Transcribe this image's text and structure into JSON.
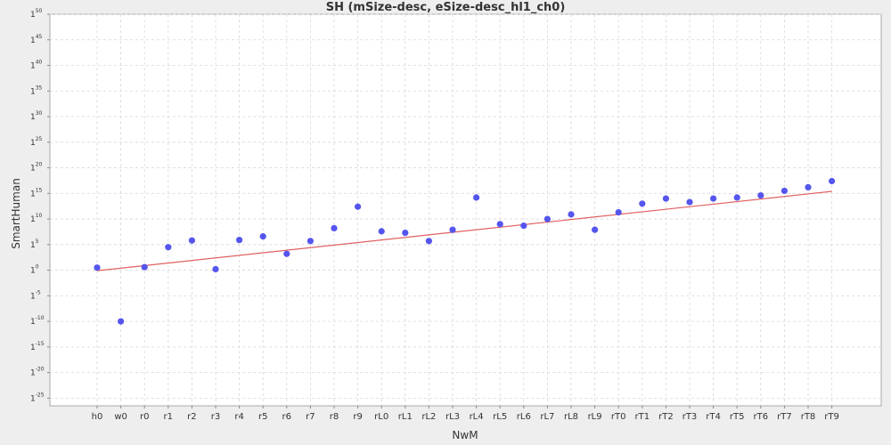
{
  "chart_data": {
    "type": "scatter",
    "title": "SH (mSize-desc, eSize-desc_hl1_ch0)",
    "xlabel": "NwM",
    "ylabel": "SmartHuman",
    "categories": [
      "h0",
      "w0",
      "r0",
      "r1",
      "r2",
      "r3",
      "r4",
      "r5",
      "r6",
      "r7",
      "r8",
      "r9",
      "rL0",
      "rL1",
      "rL2",
      "rL3",
      "rL4",
      "rL5",
      "rL6",
      "rL7",
      "rL8",
      "rL9",
      "rT0",
      "rT1",
      "rT2",
      "rT3",
      "rT4",
      "rT5",
      "rT6",
      "rT7",
      "rT8",
      "rT9"
    ],
    "y_scale": "power-of-1 exponent",
    "y_ticks": [
      {
        "base": "1",
        "exp": "-25",
        "value": -25
      },
      {
        "base": "1",
        "exp": "-20",
        "value": -20
      },
      {
        "base": "1",
        "exp": "-15",
        "value": -15
      },
      {
        "base": "1",
        "exp": "-10",
        "value": -10
      },
      {
        "base": "1",
        "exp": "-5",
        "value": -5
      },
      {
        "base": "1",
        "exp": "0",
        "value": 0
      },
      {
        "base": "1",
        "exp": "5",
        "value": 5
      },
      {
        "base": "1",
        "exp": "10",
        "value": 10
      },
      {
        "base": "1",
        "exp": "15",
        "value": 15
      },
      {
        "base": "1",
        "exp": "20",
        "value": 20
      },
      {
        "base": "1",
        "exp": "25",
        "value": 25
      },
      {
        "base": "1",
        "exp": "30",
        "value": 30
      },
      {
        "base": "1",
        "exp": "35",
        "value": 35
      },
      {
        "base": "1",
        "exp": "40",
        "value": 40
      },
      {
        "base": "1",
        "exp": "45",
        "value": 45
      },
      {
        "base": "1",
        "exp": "50",
        "value": 50
      }
    ],
    "ylim": [
      -26.5,
      50
    ],
    "series": [
      {
        "type": "scatter",
        "color": "#5555ee",
        "values": [
          0.5,
          -10.0,
          0.6,
          4.5,
          5.8,
          0.2,
          5.9,
          6.6,
          3.2,
          5.7,
          8.2,
          12.4,
          7.6,
          7.3,
          5.7,
          7.9,
          14.2,
          9.0,
          8.7,
          10.0,
          10.9,
          7.9,
          11.3,
          13.0,
          14.0,
          13.3,
          14.0,
          14.2,
          14.6,
          15.5,
          16.2,
          17.4
        ]
      },
      {
        "type": "line",
        "color": "#e06060",
        "start": [
          0,
          -0.1
        ],
        "end": [
          31,
          15.4
        ]
      }
    ],
    "grid": true,
    "legend": "none"
  }
}
